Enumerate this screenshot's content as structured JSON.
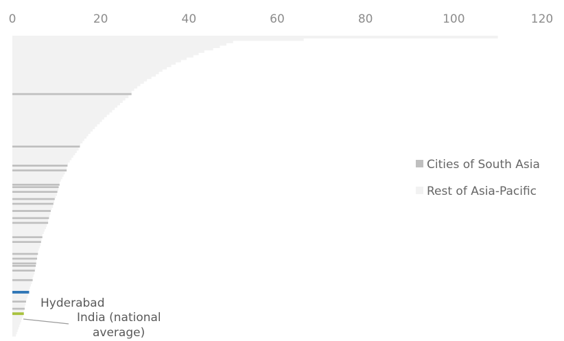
{
  "chart_data": {
    "type": "bar",
    "orientation": "horizontal",
    "xlim": [
      0,
      120
    ],
    "x_ticks": [
      0,
      20,
      40,
      60,
      80,
      100,
      120
    ],
    "x_tick_labels": [
      "0",
      "20",
      "40",
      "60",
      "80",
      "100",
      "120"
    ],
    "x_axis_position": "top",
    "grid": false,
    "legend_position": "right",
    "series": [
      {
        "name": "Cities of South Asia",
        "color": "#bfbfbf"
      },
      {
        "name": "Rest of Asia-Pacific",
        "color": "#f2f2f2"
      }
    ],
    "highlight_bars": [
      {
        "name": "Hyderabad",
        "value": 3.8,
        "color": "#2e75b6"
      },
      {
        "name": "India (national average)",
        "value": 2.6,
        "color": "#a9c23f"
      }
    ],
    "south_asia_values": [
      27,
      15.3,
      12.5,
      12.3,
      10.7,
      10.5,
      10.2,
      9.6,
      9.3,
      8.7,
      8.3,
      8.1,
      6.8,
      6.5,
      5.8,
      5.6,
      5.4,
      5.3,
      5.1,
      4.6,
      3.1,
      2.8
    ],
    "rest_values": [
      110,
      66,
      50,
      48.5,
      47,
      45.5,
      43.5,
      42.2,
      41,
      39.5,
      38.2,
      37,
      36,
      35,
      34,
      33.2,
      32.5,
      31.5,
      30.5,
      29.8,
      29,
      28.3,
      27.6,
      27,
      26.3,
      25.6,
      25,
      24.4,
      23.8,
      23.2,
      22.6,
      22,
      21.4,
      20.8,
      20.3,
      19.8,
      19.2,
      18.7,
      18.2,
      17.7,
      17.2,
      16.8,
      16.3,
      15.9,
      15.4,
      15,
      14.6,
      14.2,
      13.8,
      13.4,
      13,
      12.6,
      12.3,
      11.9,
      11.6,
      11.3,
      11,
      10.7,
      10.4,
      10.1,
      9.8,
      9.5,
      9.2,
      8.9,
      8.6,
      8.4,
      8.1,
      7.8,
      7.6,
      7.3,
      7.1,
      6.8,
      6.6,
      6.4,
      6.2,
      6,
      5.8,
      5.6,
      5.4,
      5.2,
      5,
      4.8,
      4.6,
      4.4,
      4.2,
      4,
      3.8,
      3.6,
      3.4,
      3.2,
      3,
      2.8,
      2.6,
      2.4,
      2.2,
      2,
      1.8,
      1.6,
      1.4,
      1.2,
      1,
      0.8
    ]
  },
  "legend": {
    "south_asia_label": "Cities of South Asia",
    "rest_label": "Rest of Asia-Pacific"
  },
  "annotations": {
    "hyderabad": "Hyderabad",
    "india_line1": "India (national",
    "india_line2": "average)"
  }
}
